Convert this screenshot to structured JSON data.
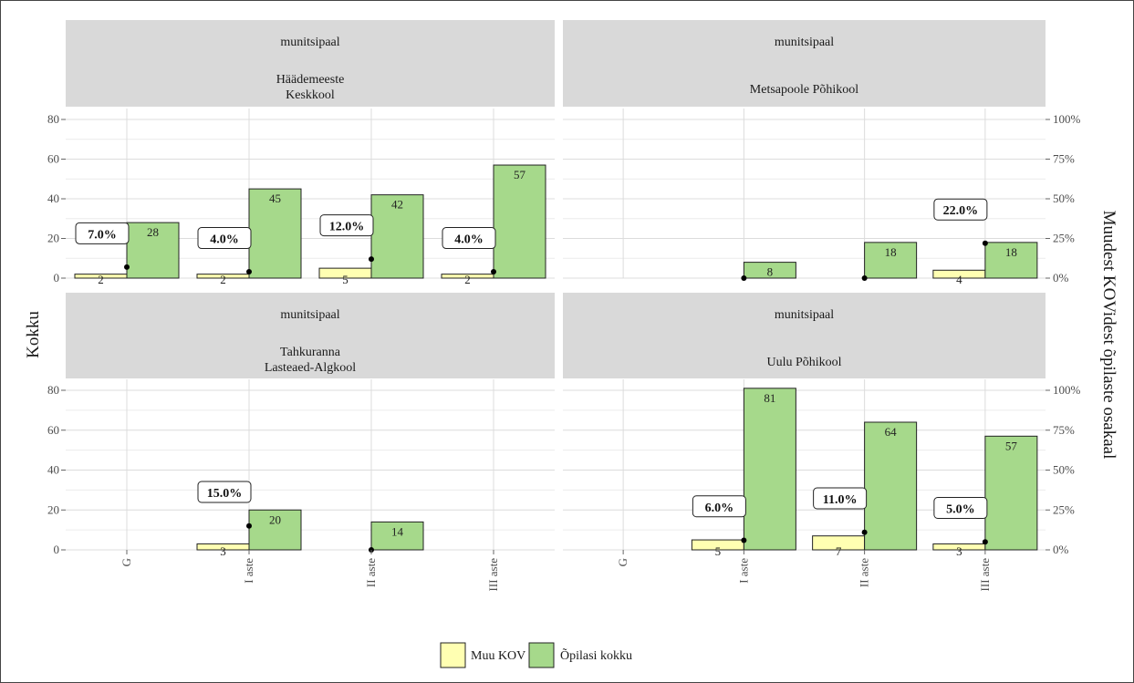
{
  "chart_data": {
    "type": "bar",
    "facet_label": "munitsipaal",
    "categories": [
      "G",
      "I aste",
      "II aste",
      "III aste"
    ],
    "ylabel_left": "Kokku",
    "ylabel_right": "Muudest KOVidest õpilaste osakaal",
    "ylim": [
      0,
      80
    ],
    "yticks_left": [
      "0",
      "20",
      "40",
      "60",
      "80"
    ],
    "yticks_right": [
      "0%",
      "25%",
      "50%",
      "75%",
      "100%"
    ],
    "legend": {
      "placement": "bottom",
      "items": [
        "Muu KOV",
        "Õpilasi kokku"
      ]
    },
    "colors": {
      "muu_kov": "#ffffb2",
      "opilasi_kokku": "#a6d98b"
    },
    "grid": true,
    "panels": [
      {
        "school": [
          "Häädemeeste",
          "Keskkool"
        ],
        "muu_kov": [
          2,
          2,
          5,
          2
        ],
        "opilasi_kokku": [
          28,
          45,
          42,
          57
        ],
        "share": [
          "7.0%",
          "4.0%",
          "12.0%",
          "4.0%"
        ],
        "share_values": [
          7.0,
          4.0,
          12.0,
          4.0
        ]
      },
      {
        "school": [
          "Metsapoole Põhikool"
        ],
        "muu_kov": [
          null,
          null,
          null,
          4
        ],
        "opilasi_kokku": [
          null,
          8,
          18,
          18
        ],
        "share": [
          null,
          null,
          null,
          "22.0%"
        ],
        "share_values": [
          null,
          0,
          0,
          22.0
        ]
      },
      {
        "school": [
          "Tahkuranna",
          "Lasteaed-Algkool"
        ],
        "muu_kov": [
          null,
          3,
          null,
          null
        ],
        "opilasi_kokku": [
          null,
          20,
          14,
          null
        ],
        "share": [
          null,
          "15.0%",
          null,
          null
        ],
        "share_values": [
          null,
          15.0,
          0,
          null
        ]
      },
      {
        "school": [
          "Uulu Põhikool"
        ],
        "muu_kov": [
          null,
          5,
          7,
          3
        ],
        "opilasi_kokku": [
          null,
          81,
          64,
          57
        ],
        "share": [
          null,
          "6.0%",
          "11.0%",
          "5.0%"
        ],
        "share_values": [
          null,
          6.0,
          11.0,
          5.0
        ]
      }
    ]
  }
}
